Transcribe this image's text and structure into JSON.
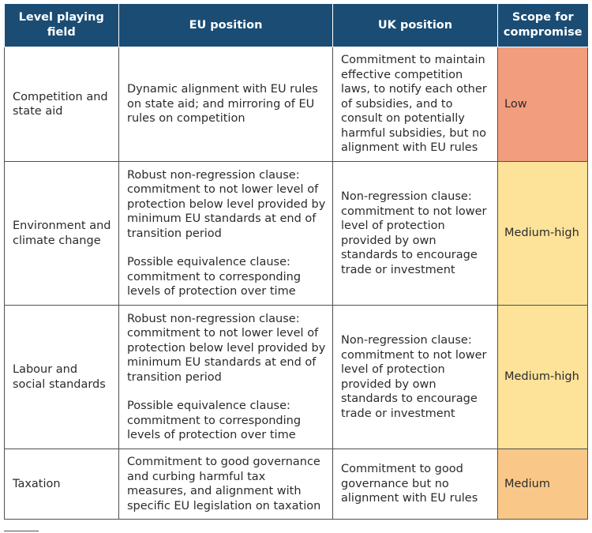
{
  "headers": [
    "Level playing field",
    "EU position",
    "UK position",
    "Scope for compromise"
  ],
  "rows": [
    {
      "factor": "Competition and state aid",
      "eu": [
        "Dynamic alignment with EU rules on state aid; and mirroring of EU rules on competition"
      ],
      "uk": "Commitment to maintain effective competition laws, to notify each other of subsidies, and to consult on potentially harmful subsidies, but no alignment with EU rules",
      "scope": "Low",
      "scope_color": "#f29d7e"
    },
    {
      "factor": "Environment and climate change",
      "eu": [
        "Robust non-regression clause: commitment to not lower level of protection below level provided by minimum EU standards at end of transition period",
        "Possible equivalence clause: commitment to corresponding levels of protection over time"
      ],
      "uk": "Non-regression clause: commitment to not lower level of protection provided by own standards to encourage trade or investment",
      "scope": "Medium-high",
      "scope_color": "#fde29a"
    },
    {
      "factor": "Labour and social standards",
      "eu": [
        "Robust non-regression clause: commitment to not lower level of protection below level provided by minimum EU standards at end of transition period",
        "Possible equivalence clause: commitment to corresponding levels of protection over time"
      ],
      "uk": "Non-regression clause: commitment to not lower level of protection provided by own standards to encourage trade or investment",
      "scope": "Medium-high",
      "scope_color": "#fde29a"
    },
    {
      "factor": "Taxation",
      "eu": [
        "Commitment to good governance and curbing harmful tax measures, and alignment with specific EU legislation on taxation"
      ],
      "uk": "Commitment to good governance but no alignment with EU rules",
      "scope": "Medium",
      "scope_color": "#f9c889"
    }
  ]
}
